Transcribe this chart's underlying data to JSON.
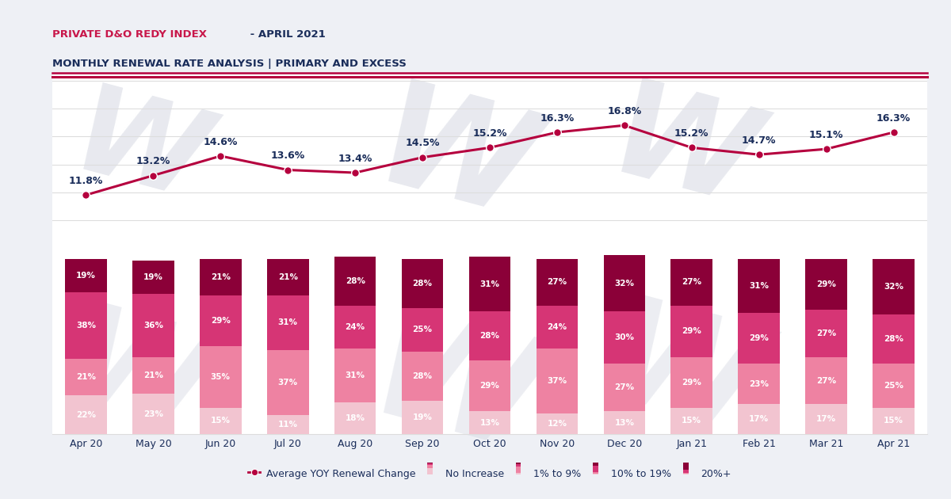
{
  "title_part1": "PRIVATE D&O REDY INDEX",
  "title_part2": " - APRIL 2021",
  "title_line2": "MONTHLY RENEWAL RATE ANALYSIS | PRIMARY AND EXCESS",
  "color_title_red": "#c8174a",
  "color_title_navy": "#1a2d5a",
  "months": [
    "Apr 20",
    "May 20",
    "Jun 20",
    "Jul 20",
    "Aug 20",
    "Sep 20",
    "Oct 20",
    "Nov 20",
    "Dec 20",
    "Jan 21",
    "Feb 21",
    "Mar 21",
    "Apr 21"
  ],
  "line_values": [
    11.8,
    13.2,
    14.6,
    13.6,
    13.4,
    14.5,
    15.2,
    16.3,
    16.8,
    15.2,
    14.7,
    15.1,
    16.3
  ],
  "line_color": "#b5003e",
  "bar_no_increase": [
    22,
    23,
    15,
    11,
    18,
    19,
    13,
    12,
    13,
    15,
    17,
    17,
    15
  ],
  "bar_1_to_9": [
    21,
    21,
    35,
    37,
    31,
    28,
    29,
    37,
    27,
    29,
    23,
    27,
    25
  ],
  "bar_10_to_19": [
    38,
    36,
    29,
    31,
    24,
    25,
    28,
    24,
    30,
    29,
    29,
    27,
    28
  ],
  "bar_20_plus": [
    19,
    19,
    21,
    21,
    28,
    28,
    31,
    27,
    32,
    27,
    31,
    29,
    32
  ],
  "color_no_increase": "#f2c4d0",
  "color_1_to_9": "#ee82a2",
  "color_10_to_19": "#d63575",
  "color_20_plus": "#8b0038",
  "bg_color": "#eef0f5",
  "chart_bg": "#ffffff",
  "watermark_color": "#d5d8e2",
  "accent_line_color": "#b5003e",
  "grid_color": "#dddddd",
  "label_color": "#1a2d5a",
  "legend_labels": [
    "Average YOY Renewal Change",
    "No Increase",
    "1% to 9%",
    "10% to 19%",
    "20%+"
  ]
}
